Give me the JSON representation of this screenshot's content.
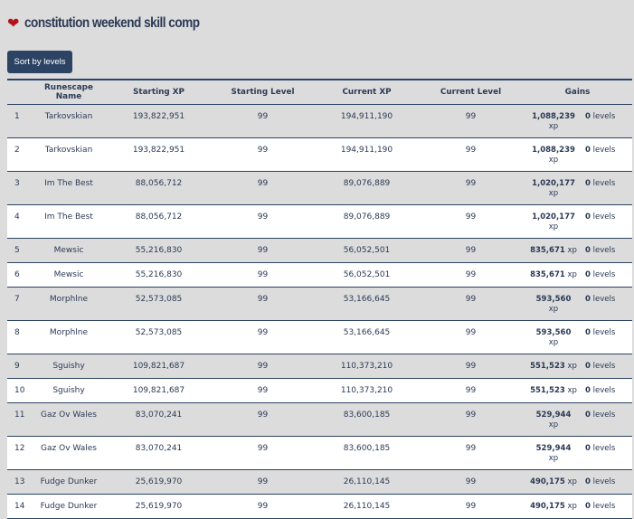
{
  "title": "constitution weekend skill comp",
  "sort_button": "Sort by levels",
  "columns": [
    "Runescape Name",
    "Starting XP",
    "Starting Level",
    "Current XP",
    "Current Level",
    "Gains"
  ],
  "rows": [
    {
      "rank": "1",
      "name": "Tarkovskian",
      "start_xp": "193,822,951",
      "start_lvl": "99",
      "cur_xp": "194,911,190",
      "cur_lvl": "99",
      "gain_xp": "1,088,239",
      "xp_unit": "xp",
      "gain_lvl": "0",
      "lvl_unit": "levels"
    },
    {
      "rank": "2",
      "name": "Tarkovskian",
      "start_xp": "193,822,951",
      "start_lvl": "99",
      "cur_xp": "194,911,190",
      "cur_lvl": "99",
      "gain_xp": "1,088,239",
      "xp_unit": "xp",
      "gain_lvl": "0",
      "lvl_unit": "levels"
    },
    {
      "rank": "3",
      "name": "Im The Best",
      "start_xp": "88,056,712",
      "start_lvl": "99",
      "cur_xp": "89,076,889",
      "cur_lvl": "99",
      "gain_xp": "1,020,177",
      "xp_unit": "xp",
      "gain_lvl": "0",
      "lvl_unit": "levels"
    },
    {
      "rank": "4",
      "name": "Im The Best",
      "start_xp": "88,056,712",
      "start_lvl": "99",
      "cur_xp": "89,076,889",
      "cur_lvl": "99",
      "gain_xp": "1,020,177",
      "xp_unit": "xp",
      "gain_lvl": "0",
      "lvl_unit": "levels"
    },
    {
      "rank": "5",
      "name": "Mewsic",
      "start_xp": "55,216,830",
      "start_lvl": "99",
      "cur_xp": "56,052,501",
      "cur_lvl": "99",
      "gain_xp": "835,671",
      "xp_unit": "xp",
      "gain_lvl": "0",
      "lvl_unit": "levels"
    },
    {
      "rank": "6",
      "name": "Mewsic",
      "start_xp": "55,216,830",
      "start_lvl": "99",
      "cur_xp": "56,052,501",
      "cur_lvl": "99",
      "gain_xp": "835,671",
      "xp_unit": "xp",
      "gain_lvl": "0",
      "lvl_unit": "levels"
    },
    {
      "rank": "7",
      "name": "Morphlne",
      "start_xp": "52,573,085",
      "start_lvl": "99",
      "cur_xp": "53,166,645",
      "cur_lvl": "99",
      "gain_xp": "593,560",
      "xp_unit": "xp",
      "gain_lvl": "0",
      "lvl_unit": "levels"
    },
    {
      "rank": "8",
      "name": "Morphlne",
      "start_xp": "52,573,085",
      "start_lvl": "99",
      "cur_xp": "53,166,645",
      "cur_lvl": "99",
      "gain_xp": "593,560",
      "xp_unit": "xp",
      "gain_lvl": "0",
      "lvl_unit": "levels"
    },
    {
      "rank": "9",
      "name": "Sguishy",
      "start_xp": "109,821,687",
      "start_lvl": "99",
      "cur_xp": "110,373,210",
      "cur_lvl": "99",
      "gain_xp": "551,523",
      "xp_unit": "xp",
      "gain_lvl": "0",
      "lvl_unit": "levels"
    },
    {
      "rank": "10",
      "name": "Sguishy",
      "start_xp": "109,821,687",
      "start_lvl": "99",
      "cur_xp": "110,373,210",
      "cur_lvl": "99",
      "gain_xp": "551,523",
      "xp_unit": "xp",
      "gain_lvl": "0",
      "lvl_unit": "levels"
    },
    {
      "rank": "11",
      "name": "Gaz Ov Wales",
      "start_xp": "83,070,241",
      "start_lvl": "99",
      "cur_xp": "83,600,185",
      "cur_lvl": "99",
      "gain_xp": "529,944",
      "xp_unit": "xp",
      "gain_lvl": "0",
      "lvl_unit": "levels"
    },
    {
      "rank": "12",
      "name": "Gaz Ov Wales",
      "start_xp": "83,070,241",
      "start_lvl": "99",
      "cur_xp": "83,600,185",
      "cur_lvl": "99",
      "gain_xp": "529,944",
      "xp_unit": "xp",
      "gain_lvl": "0",
      "lvl_unit": "levels"
    },
    {
      "rank": "13",
      "name": "Fudge Dunker",
      "start_xp": "25,619,970",
      "start_lvl": "99",
      "cur_xp": "26,110,145",
      "cur_lvl": "99",
      "gain_xp": "490,175",
      "xp_unit": "xp",
      "gain_lvl": "0",
      "lvl_unit": "levels"
    },
    {
      "rank": "14",
      "name": "Fudge Dunker",
      "start_xp": "25,619,970",
      "start_lvl": "99",
      "cur_xp": "26,110,145",
      "cur_lvl": "99",
      "gain_xp": "490,175",
      "xp_unit": "xp",
      "gain_lvl": "0",
      "lvl_unit": "levels"
    }
  ]
}
